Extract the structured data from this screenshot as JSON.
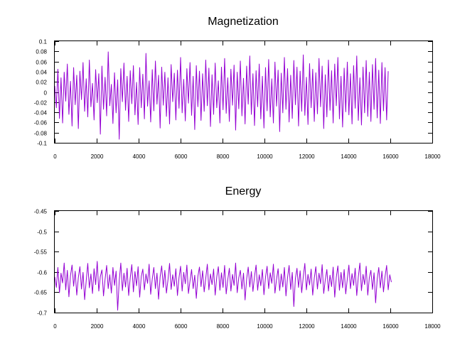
{
  "chart_data": [
    {
      "type": "line",
      "title": "Magnetization",
      "xlabel": "",
      "ylabel": "",
      "xlim": [
        0,
        18000
      ],
      "ylim": [
        -0.1,
        0.1
      ],
      "x_ticks": [
        0,
        2000,
        4000,
        6000,
        8000,
        10000,
        12000,
        14000,
        16000,
        18000
      ],
      "x_tick_labels": [
        "0",
        "2000",
        "4000",
        "6000",
        "8000",
        "10000",
        "12000",
        "14000",
        "16000",
        "18000"
      ],
      "y_ticks": [
        -0.1,
        -0.08,
        -0.06,
        -0.04,
        -0.02,
        0,
        0.02,
        0.04,
        0.06,
        0.08,
        0.1
      ],
      "y_tick_labels": [
        "-0.1",
        "-0.08",
        "-0.06",
        "-0.04",
        "-0.02",
        "0",
        "0.02",
        "0.04",
        "0.06",
        "0.08",
        "0.1"
      ],
      "grid": false,
      "series": [
        {
          "name": "magnetization",
          "color": "#9400d3",
          "x_range": [
            0,
            16550
          ],
          "step": 75,
          "values": [
            0.012,
            -0.031,
            0.045,
            -0.052,
            0.028,
            -0.061,
            0.039,
            -0.018,
            0.055,
            -0.044,
            0.021,
            -0.067,
            0.048,
            -0.025,
            0.033,
            -0.072,
            0.041,
            -0.015,
            0.058,
            -0.038,
            0.026,
            -0.049,
            0.063,
            -0.029,
            0.017,
            -0.055,
            0.044,
            -0.021,
            0.036,
            -0.083,
            0.051,
            -0.034,
            0.029,
            -0.047,
            0.079,
            -0.027,
            0.015,
            -0.062,
            0.038,
            -0.041,
            0.024,
            -0.093,
            0.046,
            -0.019,
            0.057,
            -0.036,
            0.031,
            -0.058,
            0.042,
            -0.023,
            0.052,
            -0.045,
            0.019,
            -0.064,
            0.048,
            -0.031,
            0.035,
            -0.053,
            0.076,
            -0.028,
            0.022,
            -0.059,
            0.044,
            -0.037,
            0.061,
            -0.024,
            0.033,
            -0.071,
            0.049,
            -0.026,
            0.039,
            -0.048,
            0.028,
            -0.063,
            0.054,
            -0.019,
            0.037,
            -0.055,
            0.043,
            -0.032,
            0.068,
            -0.041,
            0.025,
            -0.057,
            0.046,
            -0.022,
            0.058,
            -0.046,
            0.031,
            -0.074,
            0.052,
            -0.029,
            0.041,
            -0.056,
            0.036,
            -0.038,
            0.063,
            -0.027,
            0.047,
            -0.068,
            0.034,
            -0.044,
            0.057,
            -0.031,
            0.022,
            -0.061,
            0.049,
            -0.035,
            0.066,
            -0.042,
            0.028,
            -0.058,
            0.045,
            -0.026,
            0.053,
            -0.075,
            0.039,
            -0.033,
            0.061,
            -0.047,
            0.027,
            -0.063,
            0.051,
            -0.024,
            0.071,
            -0.044,
            0.036,
            -0.066,
            0.042,
            -0.029,
            0.055,
            -0.053,
            0.031,
            -0.071,
            0.048,
            -0.037,
            0.064,
            -0.049,
            0.026,
            -0.061,
            0.059,
            -0.028,
            0.043,
            -0.078,
            0.037,
            -0.041,
            0.068,
            -0.034,
            0.046,
            -0.059,
            0.033,
            -0.052,
            0.062,
            -0.025,
            0.049,
            -0.067,
            0.041,
            -0.038,
            0.073,
            -0.046,
            0.029,
            -0.064,
            0.056,
            -0.031,
            0.045,
            -0.058,
            0.038,
            -0.043,
            0.066,
            -0.029,
            0.051,
            -0.072,
            0.034,
            -0.049,
            0.063,
            -0.036,
            0.042,
            -0.061,
            0.055,
            -0.027,
            0.068,
            -0.053,
            0.031,
            -0.069,
            0.047,
            -0.039,
            0.059,
            -0.045,
            0.036,
            -0.063,
            0.052,
            -0.032,
            0.071,
            -0.056,
            0.028,
            -0.065,
            0.049,
            -0.041,
            0.062,
            -0.048,
            0.039,
            -0.058,
            0.054,
            -0.034,
            0.066,
            -0.051,
            0.043,
            -0.062,
            0.058,
            -0.037,
            0.048,
            -0.055,
            0.041
          ]
        }
      ]
    },
    {
      "type": "line",
      "title": "Energy",
      "xlabel": "",
      "ylabel": "",
      "xlim": [
        0,
        18000
      ],
      "ylim": [
        -0.7,
        -0.45
      ],
      "x_ticks": [
        0,
        2000,
        4000,
        6000,
        8000,
        10000,
        12000,
        14000,
        16000,
        18000
      ],
      "x_tick_labels": [
        "0",
        "2000",
        "4000",
        "6000",
        "8000",
        "10000",
        "12000",
        "14000",
        "16000",
        "18000"
      ],
      "y_ticks": [
        -0.7,
        -0.65,
        -0.6,
        -0.55,
        -0.5,
        -0.45
      ],
      "y_tick_labels": [
        "-0.7",
        "-0.65",
        "-0.6",
        "-0.55",
        "-0.5",
        "-0.45"
      ],
      "grid": false,
      "series": [
        {
          "name": "energy",
          "color": "#9400d3",
          "x_range": [
            0,
            16550
          ],
          "step": 75,
          "values": [
            -0.612,
            -0.638,
            -0.589,
            -0.651,
            -0.603,
            -0.627,
            -0.578,
            -0.644,
            -0.596,
            -0.661,
            -0.609,
            -0.583,
            -0.635,
            -0.598,
            -0.657,
            -0.614,
            -0.587,
            -0.642,
            -0.601,
            -0.668,
            -0.622,
            -0.579,
            -0.639,
            -0.605,
            -0.653,
            -0.592,
            -0.631,
            -0.574,
            -0.647,
            -0.611,
            -0.595,
            -0.659,
            -0.618,
            -0.584,
            -0.641,
            -0.607,
            -0.652,
            -0.589,
            -0.633,
            -0.598,
            -0.694,
            -0.621,
            -0.578,
            -0.646,
            -0.603,
            -0.637,
            -0.591,
            -0.658,
            -0.614,
            -0.582,
            -0.649,
            -0.599,
            -0.634,
            -0.587,
            -0.662,
            -0.611,
            -0.593,
            -0.644,
            -0.605,
            -0.628,
            -0.581,
            -0.655,
            -0.617,
            -0.589,
            -0.641,
            -0.603,
            -0.667,
            -0.612,
            -0.585,
            -0.638,
            -0.596,
            -0.652,
            -0.619,
            -0.579,
            -0.643,
            -0.607,
            -0.635,
            -0.592,
            -0.658,
            -0.614,
            -0.586,
            -0.647,
            -0.601,
            -0.629,
            -0.583,
            -0.653,
            -0.622,
            -0.594,
            -0.641,
            -0.608,
            -0.665,
            -0.611,
            -0.588,
            -0.636,
            -0.597,
            -0.649,
            -0.616,
            -0.581,
            -0.644,
            -0.605,
            -0.631,
            -0.593,
            -0.657,
            -0.612,
            -0.587,
            -0.645,
            -0.602,
            -0.638,
            -0.584,
            -0.654,
            -0.619,
            -0.591,
            -0.647,
            -0.606,
            -0.633,
            -0.578,
            -0.651,
            -0.614,
            -0.596,
            -0.642,
            -0.603,
            -0.669,
            -0.617,
            -0.588,
            -0.637,
            -0.599,
            -0.648,
            -0.611,
            -0.583,
            -0.645,
            -0.607,
            -0.634,
            -0.594,
            -0.656,
            -0.613,
            -0.586,
            -0.641,
            -0.602,
            -0.628,
            -0.581,
            -0.652,
            -0.618,
            -0.592,
            -0.646,
            -0.605,
            -0.637,
            -0.589,
            -0.659,
            -0.614,
            -0.584,
            -0.643,
            -0.601,
            -0.685,
            -0.616,
            -0.591,
            -0.638,
            -0.597,
            -0.651,
            -0.612,
            -0.579,
            -0.644,
            -0.606,
            -0.632,
            -0.593,
            -0.657,
            -0.615,
            -0.587,
            -0.642,
            -0.603,
            -0.629,
            -0.582,
            -0.653,
            -0.619,
            -0.594,
            -0.647,
            -0.608,
            -0.636,
            -0.588,
            -0.662,
            -0.613,
            -0.585,
            -0.645,
            -0.601,
            -0.639,
            -0.594,
            -0.654,
            -0.617,
            -0.583,
            -0.641,
            -0.604,
            -0.633,
            -0.591,
            -0.658,
            -0.612,
            -0.578,
            -0.646,
            -0.606,
            -0.631,
            -0.586,
            -0.657,
            -0.614,
            -0.596,
            -0.643,
            -0.602,
            -0.676,
            -0.618,
            -0.589,
            -0.639,
            -0.598,
            -0.649,
            -0.611,
            -0.584,
            -0.644,
            -0.607,
            -0.625
          ]
        }
      ]
    }
  ]
}
